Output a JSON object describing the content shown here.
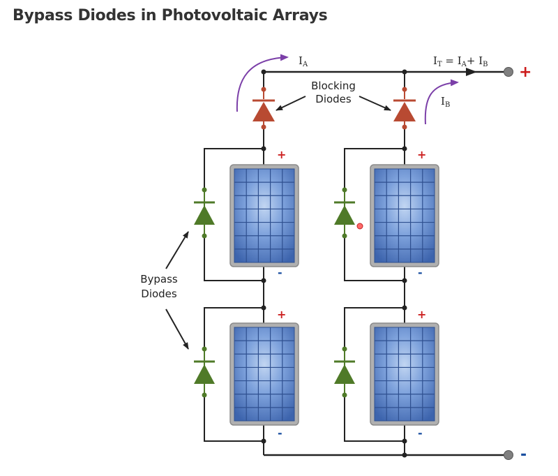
{
  "page": {
    "title": "Bypass Diodes in Photovoltaic Arrays"
  },
  "diagram": {
    "current_a": {
      "base": "I",
      "sub": "A"
    },
    "current_b": {
      "base": "I",
      "sub": "B"
    },
    "current_total": {
      "base": "I",
      "sub": "T",
      "eq": " = ",
      "a_base": "I",
      "a_sub": "A",
      "plus": "+ ",
      "b_base": "I",
      "b_sub": "B"
    },
    "blocking_label": [
      "Blocking",
      "Diodes"
    ],
    "bypass_label": [
      "Bypass",
      "Diodes"
    ],
    "module_plus": "+",
    "module_minus": "-",
    "terminal_plus": "+",
    "terminal_minus": "-",
    "colors": {
      "blocking_diode": "#b84a32",
      "bypass_diode": "#4f7a28",
      "panel_cell": "#4f78bf",
      "panel_frame": "#a8a8a8",
      "current_arrow": "#7b3fa8",
      "terminal": "#808080"
    }
  }
}
